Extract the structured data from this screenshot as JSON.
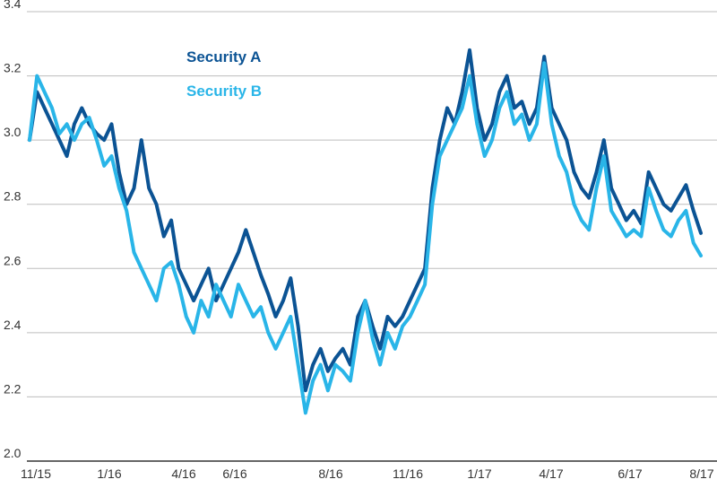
{
  "chart_data": {
    "type": "line",
    "title": "",
    "xlabel": "",
    "ylabel": "",
    "ylim": [
      2.0,
      3.4
    ],
    "y_ticks": [
      "2.0",
      "2.2",
      "2.4",
      "2.6",
      "2.8",
      "3.0",
      "3.2",
      "3.4"
    ],
    "x_tick_labels": [
      "11/15",
      "1/16",
      "4/16",
      "6/16",
      "8/16",
      "11/16",
      "1/17",
      "4/17",
      "6/17",
      "8/17"
    ],
    "grid": "horizontal",
    "legend_position": "top-left",
    "series": [
      {
        "name": "Security A",
        "color": "#0b5394",
        "points": [
          [
            "11/15",
            3.0
          ],
          [
            "11/15",
            3.15
          ],
          [
            "11/15",
            3.1
          ],
          [
            "11/15",
            3.05
          ],
          [
            "11/15",
            3.0
          ],
          [
            "12/15",
            2.95
          ],
          [
            "12/15",
            3.05
          ],
          [
            "12/15",
            3.1
          ],
          [
            "12/15",
            3.05
          ],
          [
            "12/15",
            3.02
          ],
          [
            "1/16",
            3.0
          ],
          [
            "1/16",
            3.05
          ],
          [
            "1/16",
            2.9
          ],
          [
            "1/16",
            2.8
          ],
          [
            "1/16",
            2.85
          ],
          [
            "2/16",
            3.0
          ],
          [
            "2/16",
            2.85
          ],
          [
            "2/16",
            2.8
          ],
          [
            "2/16",
            2.7
          ],
          [
            "2/16",
            2.75
          ],
          [
            "3/16",
            2.6
          ],
          [
            "3/16",
            2.55
          ],
          [
            "3/16",
            2.5
          ],
          [
            "3/16",
            2.55
          ],
          [
            "3/16",
            2.6
          ],
          [
            "4/16",
            2.5
          ],
          [
            "4/16",
            2.55
          ],
          [
            "4/16",
            2.6
          ],
          [
            "5/16",
            2.65
          ],
          [
            "5/16",
            2.72
          ],
          [
            "5/16",
            2.65
          ],
          [
            "5/16",
            2.58
          ],
          [
            "6/16",
            2.52
          ],
          [
            "6/16",
            2.45
          ],
          [
            "6/16",
            2.5
          ],
          [
            "6/16",
            2.57
          ],
          [
            "6/16",
            2.42
          ],
          [
            "7/16",
            2.22
          ],
          [
            "7/16",
            2.3
          ],
          [
            "7/16",
            2.35
          ],
          [
            "7/16",
            2.28
          ],
          [
            "8/16",
            2.32
          ],
          [
            "8/16",
            2.35
          ],
          [
            "8/16",
            2.3
          ],
          [
            "8/16",
            2.45
          ],
          [
            "9/16",
            2.5
          ],
          [
            "9/16",
            2.42
          ],
          [
            "9/16",
            2.35
          ],
          [
            "9/16",
            2.45
          ],
          [
            "10/16",
            2.42
          ],
          [
            "10/16",
            2.45
          ],
          [
            "10/16",
            2.5
          ],
          [
            "11/16",
            2.55
          ],
          [
            "11/16",
            2.6
          ],
          [
            "11/16",
            2.85
          ],
          [
            "11/16",
            3.0
          ],
          [
            "12/16",
            3.1
          ],
          [
            "12/16",
            3.05
          ],
          [
            "12/16",
            3.15
          ],
          [
            "12/16",
            3.28
          ],
          [
            "1/17",
            3.1
          ],
          [
            "1/17",
            3.0
          ],
          [
            "1/17",
            3.05
          ],
          [
            "1/17",
            3.15
          ],
          [
            "2/17",
            3.2
          ],
          [
            "2/17",
            3.1
          ],
          [
            "2/17",
            3.12
          ],
          [
            "2/17",
            3.05
          ],
          [
            "3/17",
            3.1
          ],
          [
            "3/17",
            3.26
          ],
          [
            "3/17",
            3.1
          ],
          [
            "3/17",
            3.05
          ],
          [
            "4/17",
            3.0
          ],
          [
            "4/17",
            2.9
          ],
          [
            "4/17",
            2.85
          ],
          [
            "4/17",
            2.82
          ],
          [
            "5/17",
            2.9
          ],
          [
            "5/17",
            3.0
          ],
          [
            "5/17",
            2.85
          ],
          [
            "5/17",
            2.8
          ],
          [
            "6/17",
            2.75
          ],
          [
            "6/17",
            2.78
          ],
          [
            "6/17",
            2.74
          ],
          [
            "6/17",
            2.9
          ],
          [
            "7/17",
            2.85
          ],
          [
            "7/17",
            2.8
          ],
          [
            "7/17",
            2.78
          ],
          [
            "7/17",
            2.82
          ],
          [
            "8/17",
            2.86
          ],
          [
            "8/17",
            2.78
          ],
          [
            "8/17",
            2.71
          ]
        ]
      },
      {
        "name": "Security B",
        "color": "#29b5e8",
        "points": [
          [
            "11/15",
            3.0
          ],
          [
            "11/15",
            3.2
          ],
          [
            "11/15",
            3.15
          ],
          [
            "11/15",
            3.1
          ],
          [
            "11/15",
            3.02
          ],
          [
            "12/15",
            3.05
          ],
          [
            "12/15",
            3.0
          ],
          [
            "12/15",
            3.05
          ],
          [
            "12/15",
            3.07
          ],
          [
            "12/15",
            3.0
          ],
          [
            "1/16",
            2.92
          ],
          [
            "1/16",
            2.95
          ],
          [
            "1/16",
            2.85
          ],
          [
            "1/16",
            2.78
          ],
          [
            "1/16",
            2.65
          ],
          [
            "2/16",
            2.6
          ],
          [
            "2/16",
            2.55
          ],
          [
            "2/16",
            2.5
          ],
          [
            "2/16",
            2.6
          ],
          [
            "2/16",
            2.62
          ],
          [
            "3/16",
            2.55
          ],
          [
            "3/16",
            2.45
          ],
          [
            "3/16",
            2.4
          ],
          [
            "3/16",
            2.5
          ],
          [
            "3/16",
            2.45
          ],
          [
            "4/16",
            2.55
          ],
          [
            "4/16",
            2.5
          ],
          [
            "4/16",
            2.45
          ],
          [
            "5/16",
            2.55
          ],
          [
            "5/16",
            2.5
          ],
          [
            "5/16",
            2.45
          ],
          [
            "5/16",
            2.48
          ],
          [
            "6/16",
            2.4
          ],
          [
            "6/16",
            2.35
          ],
          [
            "6/16",
            2.4
          ],
          [
            "6/16",
            2.45
          ],
          [
            "6/16",
            2.3
          ],
          [
            "7/16",
            2.15
          ],
          [
            "7/16",
            2.25
          ],
          [
            "7/16",
            2.3
          ],
          [
            "7/16",
            2.22
          ],
          [
            "8/16",
            2.3
          ],
          [
            "8/16",
            2.28
          ],
          [
            "8/16",
            2.25
          ],
          [
            "8/16",
            2.4
          ],
          [
            "9/16",
            2.5
          ],
          [
            "9/16",
            2.38
          ],
          [
            "9/16",
            2.3
          ],
          [
            "9/16",
            2.4
          ],
          [
            "10/16",
            2.35
          ],
          [
            "10/16",
            2.42
          ],
          [
            "10/16",
            2.45
          ],
          [
            "11/16",
            2.5
          ],
          [
            "11/16",
            2.55
          ],
          [
            "11/16",
            2.8
          ],
          [
            "11/16",
            2.95
          ],
          [
            "12/16",
            3.0
          ],
          [
            "12/16",
            3.05
          ],
          [
            "12/16",
            3.1
          ],
          [
            "12/16",
            3.2
          ],
          [
            "1/17",
            3.05
          ],
          [
            "1/17",
            2.95
          ],
          [
            "1/17",
            3.0
          ],
          [
            "1/17",
            3.1
          ],
          [
            "2/17",
            3.15
          ],
          [
            "2/17",
            3.05
          ],
          [
            "2/17",
            3.08
          ],
          [
            "2/17",
            3.0
          ],
          [
            "3/17",
            3.05
          ],
          [
            "3/17",
            3.24
          ],
          [
            "3/17",
            3.05
          ],
          [
            "3/17",
            2.95
          ],
          [
            "4/17",
            2.9
          ],
          [
            "4/17",
            2.8
          ],
          [
            "4/17",
            2.75
          ],
          [
            "4/17",
            2.72
          ],
          [
            "5/17",
            2.85
          ],
          [
            "5/17",
            2.95
          ],
          [
            "5/17",
            2.78
          ],
          [
            "5/17",
            2.74
          ],
          [
            "6/17",
            2.7
          ],
          [
            "6/17",
            2.72
          ],
          [
            "6/17",
            2.7
          ],
          [
            "6/17",
            2.85
          ],
          [
            "7/17",
            2.78
          ],
          [
            "7/17",
            2.72
          ],
          [
            "7/17",
            2.7
          ],
          [
            "7/17",
            2.75
          ],
          [
            "8/17",
            2.78
          ],
          [
            "8/17",
            2.68
          ],
          [
            "8/17",
            2.64
          ]
        ]
      }
    ]
  }
}
